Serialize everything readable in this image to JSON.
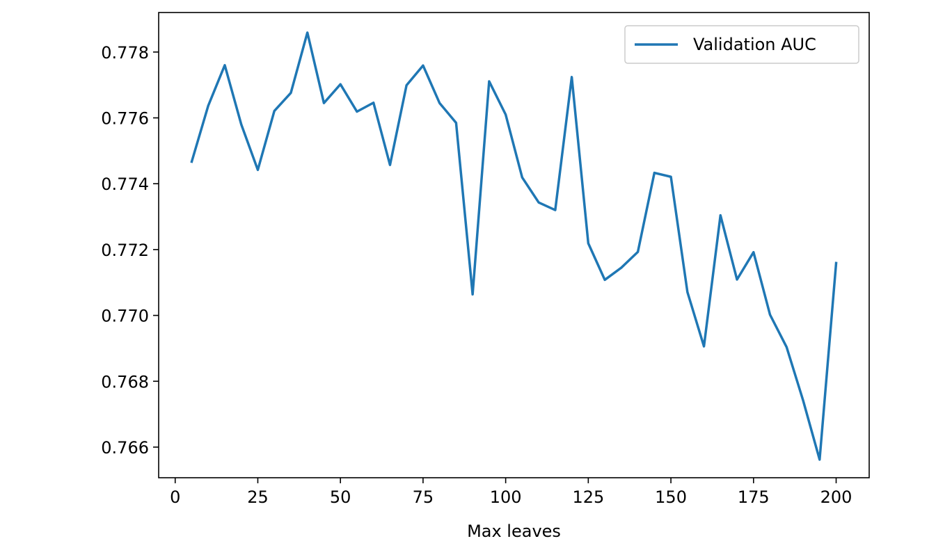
{
  "chart_data": {
    "type": "line",
    "title": "",
    "xlabel": "Max leaves",
    "ylabel": "",
    "xlim": [
      -5,
      210
    ],
    "ylim": [
      0.76507,
      0.7792
    ],
    "xticks": [
      0,
      25,
      50,
      75,
      100,
      125,
      150,
      175,
      200
    ],
    "xtick_labels": [
      "0",
      "25",
      "50",
      "75",
      "100",
      "125",
      "150",
      "175",
      "200"
    ],
    "yticks": [
      0.766,
      0.768,
      0.77,
      0.772,
      0.774,
      0.776,
      0.778
    ],
    "ytick_labels": [
      "0.766",
      "0.768",
      "0.770",
      "0.772",
      "0.774",
      "0.776",
      "0.778"
    ],
    "grid": false,
    "legend_position": "top-right",
    "series": [
      {
        "name": "Validation AUC",
        "color": "#1f77b4",
        "x": [
          5,
          10,
          15,
          20,
          25,
          30,
          35,
          40,
          45,
          50,
          55,
          60,
          65,
          70,
          75,
          80,
          85,
          90,
          95,
          100,
          105,
          110,
          115,
          120,
          125,
          130,
          135,
          140,
          145,
          150,
          155,
          160,
          165,
          170,
          175,
          180,
          185,
          190,
          195,
          200
        ],
        "y": [
          0.77467,
          0.77637,
          0.7776,
          0.7758,
          0.77442,
          0.77621,
          0.77676,
          0.77859,
          0.77645,
          0.77702,
          0.77619,
          0.77646,
          0.77457,
          0.77699,
          0.77759,
          0.77645,
          0.77585,
          0.77064,
          0.77711,
          0.7761,
          0.77419,
          0.77343,
          0.7732,
          0.77724,
          0.77219,
          0.77108,
          0.77145,
          0.77193,
          0.77433,
          0.77421,
          0.77071,
          0.76906,
          0.77304,
          0.77109,
          0.77192,
          0.77002,
          0.76904,
          0.76742,
          0.76562,
          0.77159
        ]
      }
    ]
  }
}
